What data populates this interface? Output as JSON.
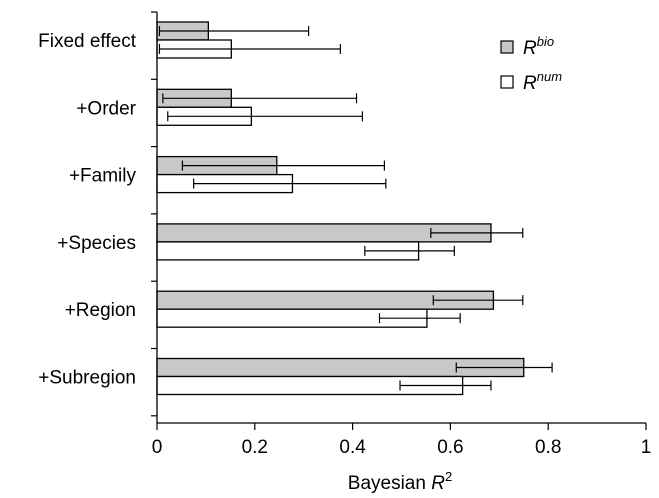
{
  "chart_data": {
    "type": "bar",
    "orientation": "horizontal",
    "categories": [
      "Fixed effect",
      "+Order",
      "+Family",
      "+Species",
      "+Region",
      "+Subregion"
    ],
    "series": [
      {
        "name_base": "R",
        "name_sup": "bio",
        "color": "#c8c8c8",
        "values": [
          0.105,
          0.152,
          0.245,
          0.683,
          0.688,
          0.75
        ],
        "err_low": [
          0.005,
          0.012,
          0.052,
          0.56,
          0.565,
          0.612
        ],
        "err_high": [
          0.31,
          0.408,
          0.465,
          0.748,
          0.748,
          0.808
        ]
      },
      {
        "name_base": "R",
        "name_sup": "num",
        "color": "#ffffff",
        "values": [
          0.152,
          0.193,
          0.277,
          0.535,
          0.552,
          0.625
        ],
        "err_low": [
          0.005,
          0.022,
          0.075,
          0.425,
          0.455,
          0.497
        ],
        "err_high": [
          0.375,
          0.42,
          0.468,
          0.608,
          0.62,
          0.683
        ]
      }
    ],
    "xlim": [
      0,
      1
    ],
    "xticks": [
      "0",
      "0.2",
      "0.4",
      "0.6",
      "0.8",
      "1"
    ],
    "xlabel_base": "Bayesian ",
    "xlabel_italic": "R",
    "xlabel_sup": "2",
    "legend_position": "top-right",
    "grid": false
  }
}
